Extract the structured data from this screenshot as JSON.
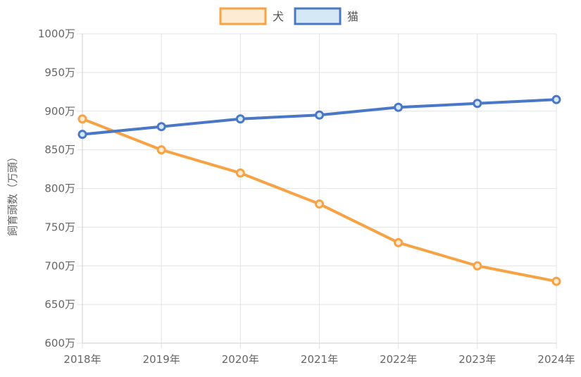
{
  "chart_data": {
    "type": "line",
    "title": "",
    "xlabel": "",
    "ylabel": "飼育頭数（万頭）",
    "categories": [
      "2018年",
      "2019年",
      "2020年",
      "2021年",
      "2022年",
      "2023年",
      "2024年"
    ],
    "y_tick_labels": [
      "600万",
      "650万",
      "700万",
      "750万",
      "800万",
      "850万",
      "900万",
      "950万",
      "1000万"
    ],
    "ylim": [
      600,
      1000
    ],
    "y_step": 50,
    "grid": true,
    "legend_position": "top-center",
    "series": [
      {
        "name": "犬",
        "values": [
          890,
          850,
          820,
          780,
          730,
          700,
          680
        ],
        "color": "#f7a243",
        "fill": "#fdebd3"
      },
      {
        "name": "猫",
        "values": [
          870,
          880,
          890,
          895,
          905,
          910,
          915
        ],
        "color": "#4a78c6",
        "fill": "#d4e8f6"
      }
    ]
  }
}
